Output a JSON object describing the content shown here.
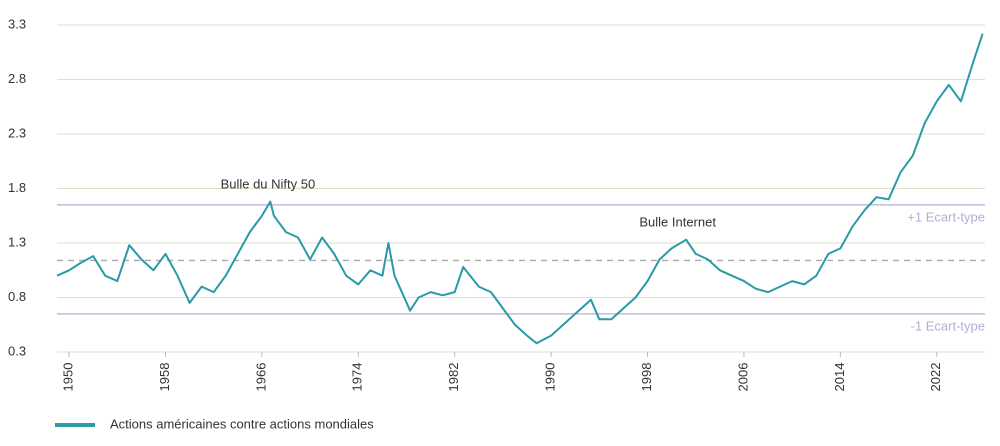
{
  "chart_data": {
    "type": "line",
    "annotations": [
      {
        "text": "Bulle du Nifty 50",
        "x": 1966.5,
        "y": 1.65
      },
      {
        "text": "Bulle Internet",
        "x": 2000.5,
        "y": 1.3
      }
    ],
    "reference_lines": [
      {
        "value": 1.65,
        "label": "+1 Ecart-type",
        "color": "#b3aed6"
      },
      {
        "value": 1.14,
        "style": "dashed",
        "color": "#a9a9a9"
      },
      {
        "value": 0.65,
        "label": "-1 Ecart-type",
        "color": "#b3aed6"
      }
    ],
    "x": [
      1949,
      1950,
      1951,
      1952,
      1953,
      1954,
      1955,
      1956,
      1957,
      1958,
      1959,
      1960,
      1961,
      1962,
      1963,
      1964,
      1965,
      1966,
      1966.7,
      1967,
      1968,
      1969,
      1970,
      1971,
      1972,
      1973,
      1974,
      1975,
      1976,
      1976.5,
      1977,
      1978.3,
      1979,
      1980,
      1981,
      1982,
      1982.7,
      1984,
      1985,
      1986,
      1987,
      1988,
      1988.8,
      1990,
      1991,
      1992,
      1993.3,
      1994,
      1995,
      1996,
      1997,
      1998,
      1999,
      2000,
      2001.2,
      2002,
      2003,
      2004,
      2005,
      2006,
      2007,
      2008,
      2009,
      2010,
      2011,
      2012,
      2013,
      2014,
      2015,
      2016,
      2017,
      2018,
      2019,
      2020,
      2021,
      2022,
      2023,
      2024,
      2025,
      2025.8
    ],
    "series": [
      {
        "name": "Actions américaines contre actions mondiales",
        "color": "#2a9aa6",
        "values": [
          1.0,
          1.05,
          1.12,
          1.18,
          1.0,
          0.95,
          1.28,
          1.15,
          1.05,
          1.2,
          1.0,
          0.75,
          0.9,
          0.85,
          1.0,
          1.2,
          1.4,
          1.55,
          1.68,
          1.55,
          1.4,
          1.35,
          1.15,
          1.35,
          1.2,
          1.0,
          0.92,
          1.05,
          1.0,
          1.3,
          1.0,
          0.68,
          0.8,
          0.85,
          0.82,
          0.85,
          1.08,
          0.9,
          0.85,
          0.7,
          0.55,
          0.45,
          0.38,
          0.45,
          0.55,
          0.65,
          0.78,
          0.6,
          0.6,
          0.7,
          0.8,
          0.95,
          1.15,
          1.25,
          1.33,
          1.2,
          1.15,
          1.05,
          1.0,
          0.95,
          0.88,
          0.85,
          0.9,
          0.95,
          0.92,
          1.0,
          1.2,
          1.25,
          1.45,
          1.6,
          1.72,
          1.7,
          1.95,
          2.1,
          2.4,
          2.6,
          2.75,
          2.6,
          2.95,
          3.22
        ]
      }
    ],
    "xlim": [
      1949,
      2026
    ],
    "xticks": [
      1950,
      1958,
      1966,
      1974,
      1982,
      1990,
      1998,
      2006,
      2014,
      2022
    ],
    "ylim": [
      0.3,
      3.3
    ],
    "yticks": [
      0.3,
      0.8,
      1.3,
      1.8,
      2.3,
      2.8,
      3.3
    ],
    "grid": true
  }
}
